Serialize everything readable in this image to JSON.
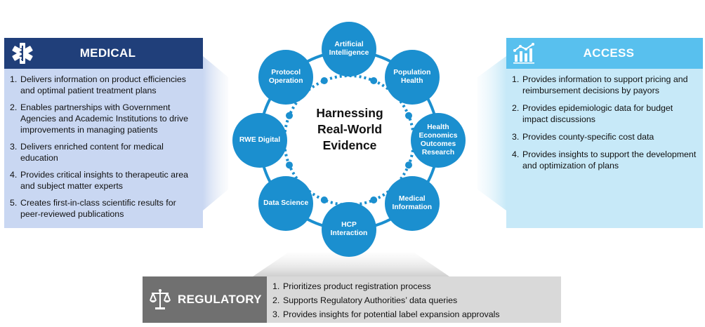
{
  "center": {
    "title": "Harnessing\nReal-World\nEvidence"
  },
  "nodes": [
    {
      "id": "artificial-intelligence",
      "label": "Artificial\nIntelligence"
    },
    {
      "id": "population-health",
      "label": "Population\nHealth"
    },
    {
      "id": "health-economics",
      "label": "Health\nEconomics\nOutcomes\nResearch"
    },
    {
      "id": "medical-information",
      "label": "Medical\nInformation"
    },
    {
      "id": "hcp-interaction",
      "label": "HCP\nInteraction"
    },
    {
      "id": "data-science",
      "label": "Data Science"
    },
    {
      "id": "rwe-digital",
      "label": "RWE Digital"
    },
    {
      "id": "protocol-operation",
      "label": "Protocol\nOperation"
    }
  ],
  "medical": {
    "title": "MEDICAL",
    "icon": "star-of-life-icon",
    "items": [
      {
        "n": "1.",
        "text": "Delivers information on product efficiencies and optimal patient treatment plans"
      },
      {
        "n": "2.",
        "text": "Enables partnerships with Government Agencies and Academic Institutions to drive improvements in managing patients"
      },
      {
        "n": "3.",
        "text": "Delivers enriched content for medical education"
      },
      {
        "n": "4.",
        "text": "Provides critical insights to therapeutic area and subject matter experts"
      },
      {
        "n": "5.",
        "text": "Creates first-in-class scientific results for peer-reviewed publications"
      }
    ]
  },
  "access": {
    "title": "ACCESS",
    "icon": "chart-icon",
    "items": [
      {
        "n": "1.",
        "text": "Provides information to support pricing and reimbursement decisions by payors"
      },
      {
        "n": "2.",
        "text": "Provides epidemiologic data for budget impact discussions"
      },
      {
        "n": "3.",
        "text": "Provides county-specific cost data"
      },
      {
        "n": "4.",
        "text": "Provides insights to support the development and optimization of plans"
      }
    ]
  },
  "regulatory": {
    "title": "REGULATORY",
    "icon": "scales-icon",
    "items": [
      {
        "n": "1.",
        "text": "Prioritizes product registration process"
      },
      {
        "n": "2.",
        "text": "Supports Regulatory Authorities’ data queries"
      },
      {
        "n": "3.",
        "text": "Provides insights for potential label expansion approvals"
      }
    ]
  },
  "colors": {
    "medical_header": "#203f7a",
    "medical_body": "#c9d7f2",
    "access_header": "#58c0ee",
    "access_body": "#c7e9f8",
    "regulatory_header": "#707070",
    "regulatory_body": "#d9d9d9",
    "node": "#1b8fcf",
    "ring": "#1b8fcf"
  }
}
